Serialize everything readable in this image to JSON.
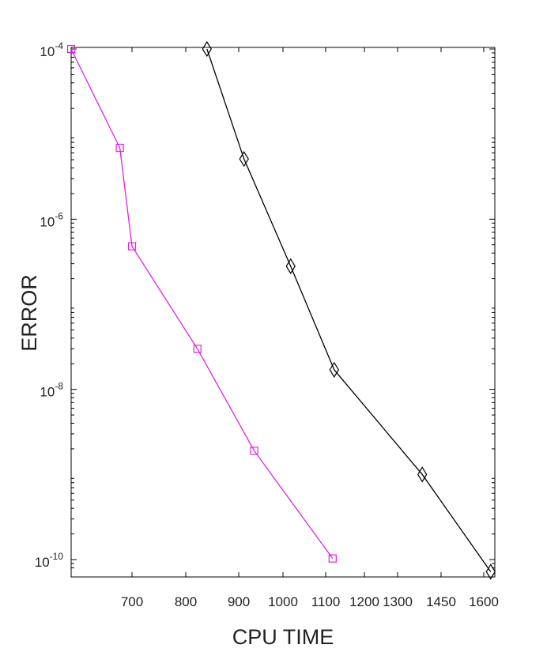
{
  "chart_data": {
    "type": "line",
    "xlabel": "CPU TIME",
    "ylabel": "ERROR",
    "y_scale": "log",
    "x_ticks": [
      {
        "value": 700,
        "label": "700"
      },
      {
        "value": 800,
        "label": "800"
      },
      {
        "value": 900,
        "label": "900"
      },
      {
        "value": 1000,
        "label": "1000"
      },
      {
        "value": 1100,
        "label": "1100"
      },
      {
        "value": 1200,
        "label": "1200"
      },
      {
        "value": 1300,
        "label": "1300"
      },
      {
        "value": 1450,
        "label": "1450"
      },
      {
        "value": 1600,
        "label": "1600"
      }
    ],
    "y_ticks": [
      {
        "value": 0.0001,
        "base": "10",
        "exp": "-4"
      },
      {
        "value": 1e-06,
        "base": "10",
        "exp": "-6"
      },
      {
        "value": 1e-08,
        "base": "10",
        "exp": "-8"
      },
      {
        "value": 1e-10,
        "base": "10",
        "exp": "-10"
      }
    ],
    "series": [
      {
        "color": "#e020e0",
        "marker": "square",
        "points": [
          {
            "x": 600,
            "y": 0.0001
          },
          {
            "x": 680,
            "y": 6.9e-06
          },
          {
            "x": 700,
            "y": 4.8e-07
          },
          {
            "x": 822,
            "y": 3e-08
          },
          {
            "x": 935,
            "y": 1.9e-09
          },
          {
            "x": 1118,
            "y": 1.03e-10
          }
        ]
      },
      {
        "color": "#000000",
        "marker": "diamond",
        "points": [
          {
            "x": 840,
            "y": 0.0001
          },
          {
            "x": 912,
            "y": 5.1e-06
          },
          {
            "x": 1018,
            "y": 2.8e-07
          },
          {
            "x": 1122,
            "y": 1.7e-08
          },
          {
            "x": 1385,
            "y": 1e-09
          },
          {
            "x": 1625,
            "y": 7.2e-11
          }
        ]
      }
    ]
  }
}
